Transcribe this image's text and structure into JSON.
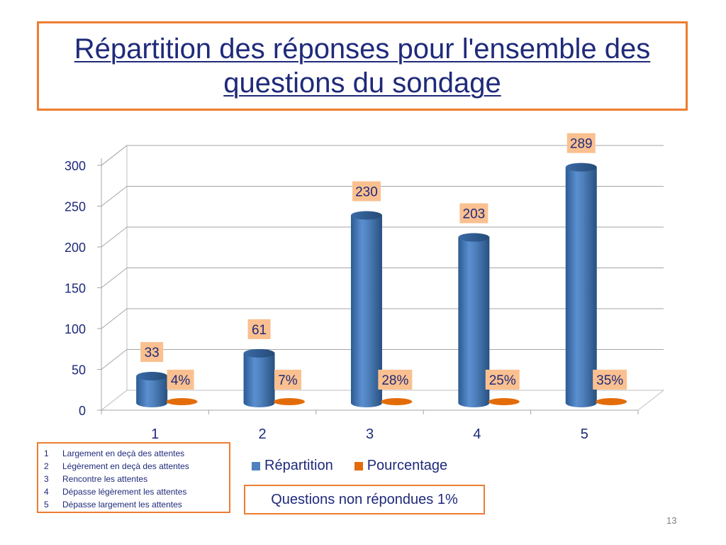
{
  "slide": {
    "title": "Répartition des réponses pour l'ensemble des questions du sondage",
    "page_number": "13",
    "note": "Questions non répondues 1%"
  },
  "legend_box": {
    "items": [
      {
        "num": "1",
        "text": "Largement en deçà des attentes"
      },
      {
        "num": "2",
        "text": "Légèrement en deçà des attentes"
      },
      {
        "num": "3",
        "text": "Rencontre les attentes"
      },
      {
        "num": "4",
        "text": "Dépasse légèrement les attentes"
      },
      {
        "num": "5",
        "text": "Dépasse largement les attentes"
      }
    ]
  },
  "colors": {
    "accent_border": "#ed7d31",
    "bar_blue": "#4f81bd",
    "bar_orange": "#e36c09",
    "label_bg": "#fac090",
    "text": "#1f2a7a"
  },
  "chart_data": {
    "type": "bar",
    "categories": [
      "1",
      "2",
      "3",
      "4",
      "5"
    ],
    "series": [
      {
        "name": "Répartition",
        "values": [
          33,
          61,
          230,
          203,
          289
        ],
        "labels": [
          "33",
          "61",
          "230",
          "203",
          "289"
        ]
      },
      {
        "name": "Pourcentage",
        "values": [
          4,
          7,
          28,
          25,
          35
        ],
        "labels": [
          "4%",
          "7%",
          "28%",
          "25%",
          "35%"
        ]
      }
    ],
    "ylim": [
      0,
      300
    ],
    "yticks": [
      "0",
      "50",
      "100",
      "150",
      "200",
      "250",
      "300"
    ],
    "grid": true,
    "legend_position": "bottom",
    "xlabel": "",
    "ylabel": ""
  }
}
